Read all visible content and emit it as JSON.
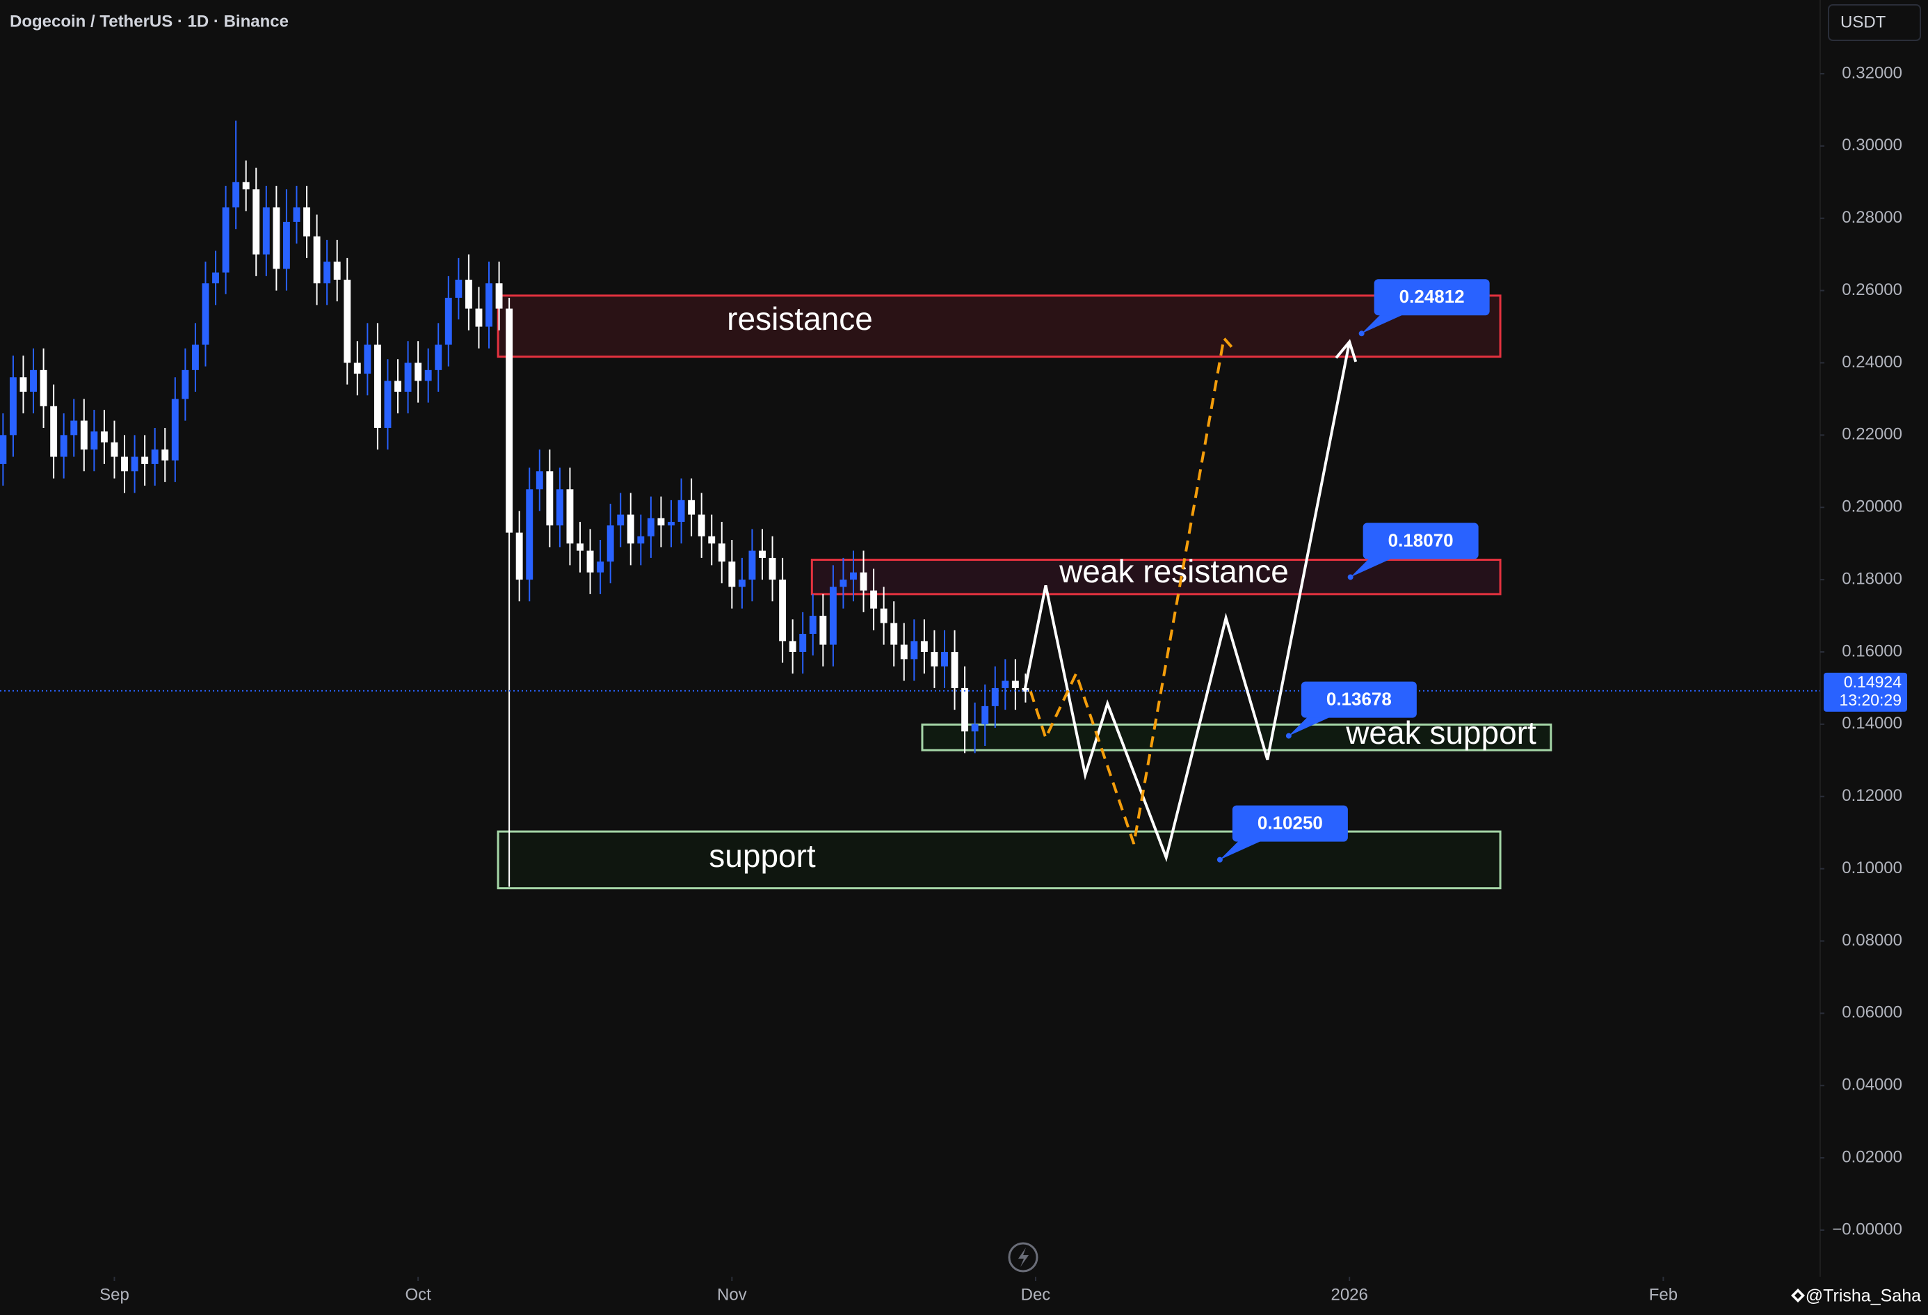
{
  "chart_data": {
    "type": "candlestick",
    "title": "Dogecoin / TetherUS · 1D · Binance",
    "currency": "USDT",
    "watermark": "@Trisha_Saha",
    "up_color": "#2962ff",
    "down_color": "#ffffff",
    "grid": false,
    "xlim": [
      0.7,
      180.5
    ],
    "ylim": [
      -0.0129,
      0.3404
    ],
    "xticks": [
      {
        "value": 12,
        "label": "Sep"
      },
      {
        "value": 42,
        "label": "Oct"
      },
      {
        "value": 73,
        "label": "Nov"
      },
      {
        "value": 103,
        "label": "Dec"
      },
      {
        "value": 134,
        "label": "2026"
      },
      {
        "value": 165,
        "label": "Feb"
      }
    ],
    "yticks": [
      {
        "value": 0.32,
        "label": "0.32000"
      },
      {
        "value": 0.3,
        "label": "0.30000"
      },
      {
        "value": 0.28,
        "label": "0.28000"
      },
      {
        "value": 0.26,
        "label": "0.26000"
      },
      {
        "value": 0.24,
        "label": "0.24000"
      },
      {
        "value": 0.22,
        "label": "0.22000"
      },
      {
        "value": 0.2,
        "label": "0.20000"
      },
      {
        "value": 0.18,
        "label": "0.18000"
      },
      {
        "value": 0.16,
        "label": "0.16000"
      },
      {
        "value": 0.14,
        "label": "0.14000"
      },
      {
        "value": 0.12,
        "label": "0.12000"
      },
      {
        "value": 0.1,
        "label": "0.10000"
      },
      {
        "value": 0.08,
        "label": "0.08000"
      },
      {
        "value": 0.06,
        "label": "0.06000"
      },
      {
        "value": 0.04,
        "label": "0.04000"
      },
      {
        "value": 0.02,
        "label": "0.02000"
      },
      {
        "value": 0,
        "label": "−0.00000"
      }
    ],
    "open": [
      0.212,
      0.22,
      0.236,
      0.232,
      0.238,
      0.228,
      0.214,
      0.22,
      0.224,
      0.216,
      0.221,
      0.218,
      0.214,
      0.21,
      0.214,
      0.212,
      0.216,
      0.213,
      0.23,
      0.238,
      0.245,
      0.262,
      0.265,
      0.283,
      0.29,
      0.288,
      0.27,
      0.283,
      0.266,
      0.279,
      0.283,
      0.275,
      0.262,
      0.268,
      0.263,
      0.24,
      0.237,
      0.245,
      0.222,
      0.235,
      0.232,
      0.24,
      0.235,
      0.238,
      0.245,
      0.258,
      0.263,
      0.255,
      0.25,
      0.262,
      0.255,
      0.193,
      0.18,
      0.205,
      0.21,
      0.195,
      0.205,
      0.19,
      0.188,
      0.182,
      0.185,
      0.195,
      0.198,
      0.19,
      0.192,
      0.197,
      0.195,
      0.196,
      0.202,
      0.198,
      0.192,
      0.19,
      0.185,
      0.178,
      0.18,
      0.188,
      0.186,
      0.18,
      0.163,
      0.16,
      0.165,
      0.17,
      0.162,
      0.178,
      0.18,
      0.182,
      0.177,
      0.172,
      0.168,
      0.162,
      0.158,
      0.163,
      0.16,
      0.156,
      0.16,
      0.15,
      0.138,
      0.14,
      0.145,
      0.15,
      0.152,
      0.15
    ],
    "high": [
      0.226,
      0.242,
      0.242,
      0.244,
      0.244,
      0.234,
      0.226,
      0.23,
      0.23,
      0.227,
      0.227,
      0.224,
      0.22,
      0.22,
      0.22,
      0.222,
      0.222,
      0.236,
      0.244,
      0.251,
      0.268,
      0.271,
      0.289,
      0.307,
      0.296,
      0.294,
      0.289,
      0.289,
      0.288,
      0.289,
      0.289,
      0.281,
      0.274,
      0.274,
      0.269,
      0.246,
      0.251,
      0.251,
      0.241,
      0.241,
      0.246,
      0.246,
      0.244,
      0.251,
      0.264,
      0.269,
      0.27,
      0.261,
      0.268,
      0.268,
      0.258,
      0.199,
      0.211,
      0.216,
      0.216,
      0.211,
      0.211,
      0.196,
      0.194,
      0.191,
      0.201,
      0.204,
      0.204,
      0.198,
      0.203,
      0.203,
      0.202,
      0.208,
      0.208,
      0.204,
      0.198,
      0.196,
      0.191,
      0.186,
      0.194,
      0.194,
      0.192,
      0.186,
      0.169,
      0.171,
      0.176,
      0.176,
      0.184,
      0.186,
      0.188,
      0.188,
      0.183,
      0.178,
      0.174,
      0.168,
      0.169,
      0.169,
      0.166,
      0.166,
      0.166,
      0.156,
      0.146,
      0.151,
      0.156,
      0.158,
      0.158,
      0.154
    ],
    "low": [
      0.206,
      0.214,
      0.226,
      0.226,
      0.222,
      0.208,
      0.208,
      0.214,
      0.21,
      0.21,
      0.212,
      0.208,
      0.204,
      0.204,
      0.206,
      0.206,
      0.207,
      0.207,
      0.224,
      0.232,
      0.239,
      0.256,
      0.259,
      0.277,
      0.282,
      0.264,
      0.264,
      0.26,
      0.26,
      0.273,
      0.269,
      0.256,
      0.256,
      0.257,
      0.234,
      0.231,
      0.231,
      0.216,
      0.216,
      0.226,
      0.226,
      0.229,
      0.229,
      0.232,
      0.239,
      0.252,
      0.249,
      0.244,
      0.244,
      0.249,
      0.095,
      0.174,
      0.174,
      0.199,
      0.189,
      0.189,
      0.184,
      0.182,
      0.176,
      0.176,
      0.179,
      0.189,
      0.184,
      0.184,
      0.186,
      0.189,
      0.189,
      0.19,
      0.192,
      0.186,
      0.184,
      0.179,
      0.172,
      0.172,
      0.174,
      0.18,
      0.174,
      0.157,
      0.154,
      0.154,
      0.159,
      0.156,
      0.156,
      0.172,
      0.174,
      0.171,
      0.166,
      0.162,
      0.156,
      0.152,
      0.152,
      0.154,
      0.15,
      0.15,
      0.144,
      0.132,
      0.132,
      0.134,
      0.139,
      0.144,
      0.144,
      0.146
    ],
    "close": [
      0.22,
      0.236,
      0.232,
      0.238,
      0.228,
      0.214,
      0.22,
      0.224,
      0.216,
      0.221,
      0.218,
      0.214,
      0.21,
      0.214,
      0.212,
      0.216,
      0.213,
      0.23,
      0.238,
      0.245,
      0.262,
      0.265,
      0.283,
      0.29,
      0.288,
      0.27,
      0.283,
      0.266,
      0.279,
      0.283,
      0.275,
      0.262,
      0.268,
      0.263,
      0.24,
      0.237,
      0.245,
      0.222,
      0.235,
      0.232,
      0.24,
      0.235,
      0.238,
      0.245,
      0.258,
      0.263,
      0.255,
      0.25,
      0.262,
      0.255,
      0.193,
      0.18,
      0.205,
      0.21,
      0.195,
      0.205,
      0.19,
      0.188,
      0.182,
      0.185,
      0.195,
      0.198,
      0.19,
      0.192,
      0.197,
      0.195,
      0.196,
      0.202,
      0.198,
      0.192,
      0.19,
      0.185,
      0.178,
      0.18,
      0.188,
      0.186,
      0.18,
      0.163,
      0.16,
      0.165,
      0.17,
      0.162,
      0.178,
      0.18,
      0.182,
      0.177,
      0.172,
      0.168,
      0.162,
      0.158,
      0.163,
      0.16,
      0.156,
      0.16,
      0.15,
      0.138,
      0.14,
      0.145,
      0.15,
      0.152,
      0.15,
      0.149
    ],
    "last_price": {
      "value": 0.14924,
      "label": "0.14924"
    },
    "countdown": "13:20:29",
    "zones": [
      {
        "name": "resistance",
        "ylim": [
          0.2417,
          0.2586
        ],
        "xlim": [
          49.9,
          148.9
        ],
        "stroke": "#e5323f",
        "fill": "#2a1215"
      },
      {
        "name": "weak resistance",
        "ylim": [
          0.176,
          0.1855
        ],
        "xlim": [
          80.9,
          148.9
        ],
        "stroke": "#e5323f",
        "fill": "#24111a"
      },
      {
        "name": "weak support",
        "ylim": [
          0.1328,
          0.1399
        ],
        "xlim": [
          91.8,
          153.9
        ],
        "stroke": "#a5d6a7",
        "fill": "#0f1a10"
      },
      {
        "name": "support",
        "ylim": [
          0.0946,
          0.1103
        ],
        "xlim": [
          49.9,
          148.9
        ],
        "stroke": "#a5d6a7",
        "fill": "#0f160f"
      }
    ],
    "callouts": [
      {
        "price": {
          "value": 0.24812,
          "label": "0.24812"
        },
        "x": 135.2
      },
      {
        "price": {
          "value": 0.1807,
          "label": "0.18070"
        },
        "x": 134.1
      },
      {
        "price": {
          "value": 0.13678,
          "label": "0.13678"
        },
        "x": 128.0
      },
      {
        "price": {
          "value": 0.1025,
          "label": "0.10250"
        },
        "x": 121.2
      }
    ],
    "projections": [
      {
        "color": "#ffffff",
        "dashed": false,
        "arrow": true,
        "x": [
          101.9,
          104.0,
          107.9,
          110.1,
          115.9,
          121.8,
          125.9,
          134.0
        ],
        "y": [
          0.1491,
          0.1784,
          0.126,
          0.1457,
          0.1031,
          0.1694,
          0.1302,
          0.2458
        ]
      },
      {
        "color": "#f59e0b",
        "dashed": true,
        "arrow": false,
        "x": [
          102.5,
          104.0,
          107.0,
          112.7,
          121.6,
          122.8
        ],
        "y": [
          0.1491,
          0.1362,
          0.154,
          0.1069,
          0.2468,
          0.243
        ]
      }
    ]
  }
}
